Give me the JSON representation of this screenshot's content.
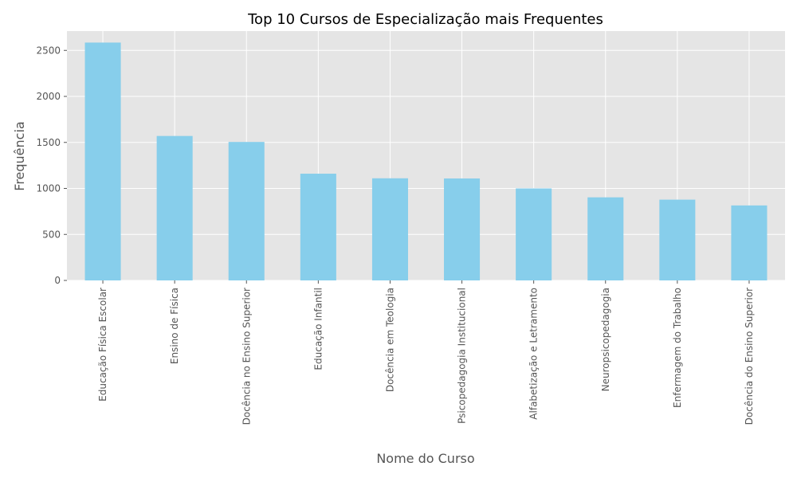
{
  "chart_data": {
    "type": "bar",
    "title": "Top 10 Cursos de Especialização mais Frequentes",
    "xlabel": "Nome do Curso",
    "ylabel": "Frequência",
    "categories": [
      "Educação Física Escolar",
      "Ensino de Física",
      "Docência no Ensino Superior",
      "Educação Infantil",
      "Docência em Teologia",
      "Psicopedagogia Institucional",
      "Alfabetização e Letramento",
      "Neuropsicopedagogia",
      "Enfermagem do Trabalho",
      "Docência do Ensino Superior"
    ],
    "values": [
      2585,
      1570,
      1505,
      1160,
      1110,
      1108,
      1000,
      903,
      878,
      815
    ],
    "ylim": [
      0,
      2710
    ],
    "yticks": [
      0,
      500,
      1000,
      1500,
      2000,
      2500
    ],
    "grid": true,
    "legend": "none",
    "colors": {
      "bar": "#87ceeb",
      "plot_background": "#e5e5e5",
      "grid": "#ffffff",
      "text": "#555555"
    }
  }
}
